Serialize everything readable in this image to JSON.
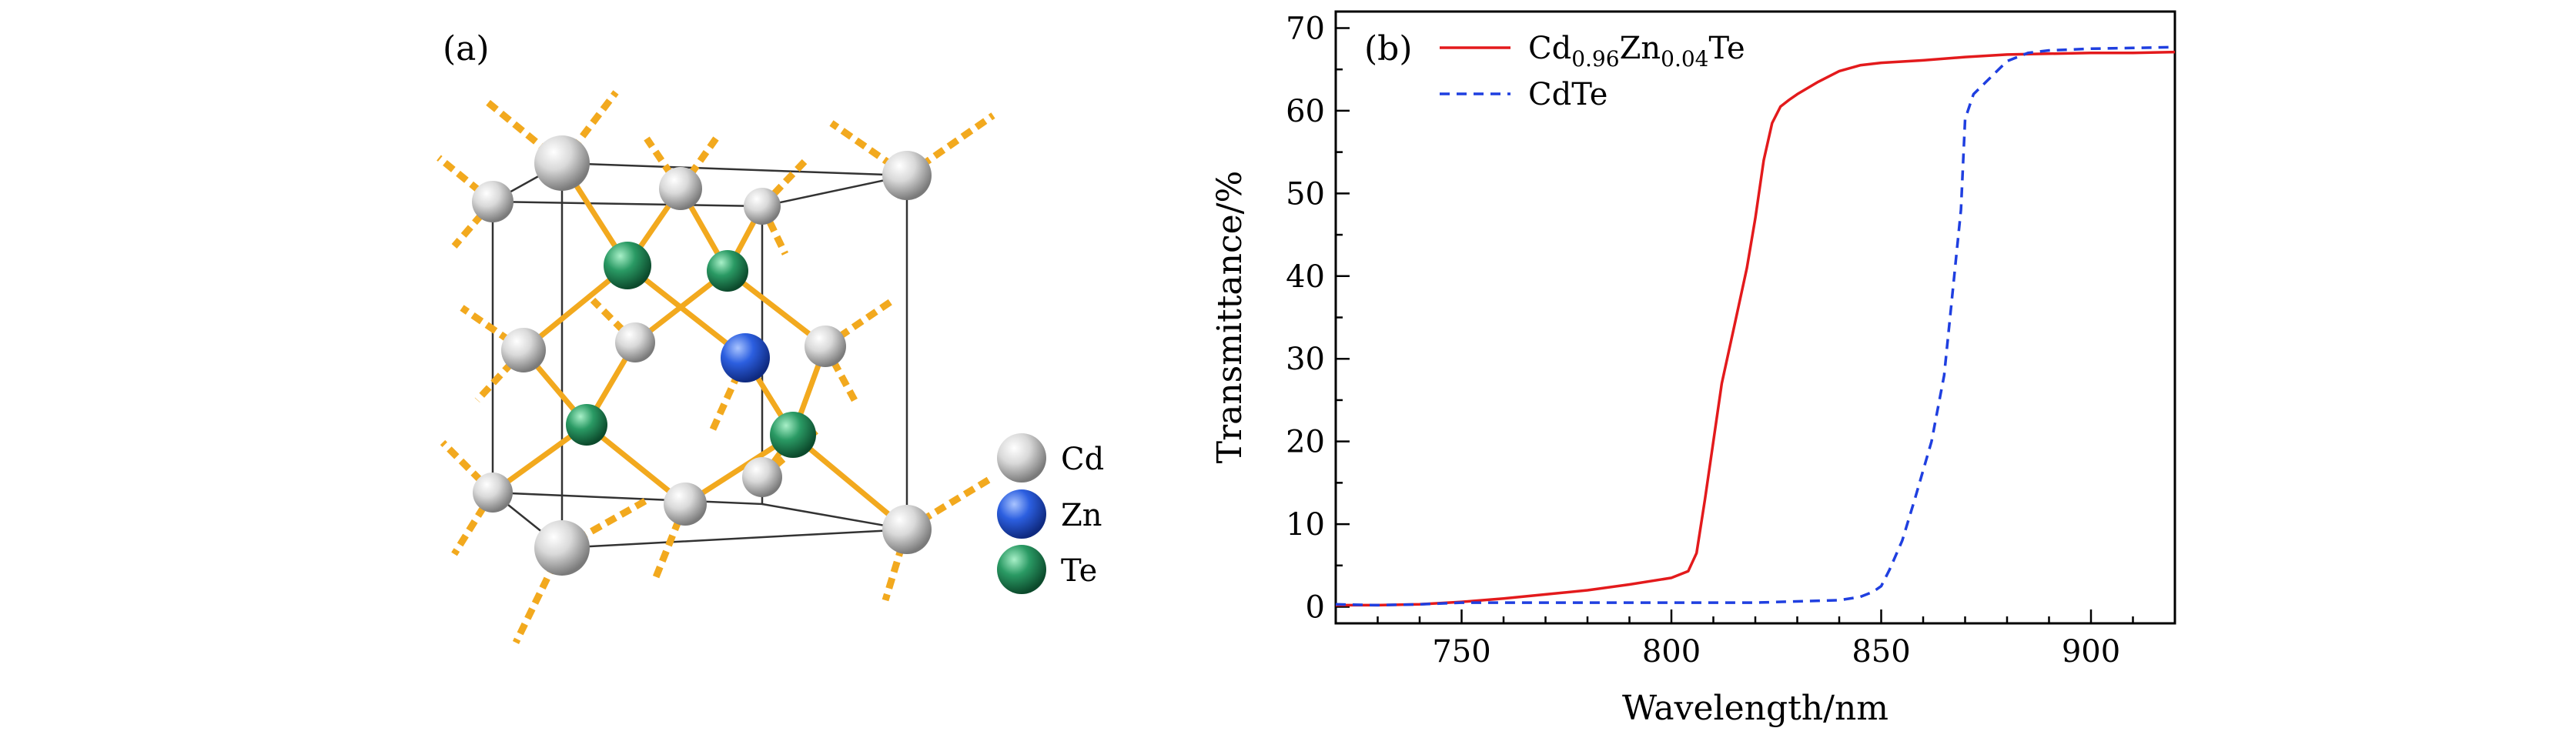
{
  "panel_a": {
    "label": "(a)",
    "legend": [
      {
        "name": "Cd",
        "color": "#d4d4d4"
      },
      {
        "name": "Zn",
        "color": "#2255d6"
      },
      {
        "name": "Te",
        "color": "#1f8f5f"
      }
    ],
    "bond_color": "#f2a91e"
  },
  "panel_b": {
    "label": "(b)",
    "legend": [
      {
        "base1": "Cd",
        "sub1": "0.96",
        "base2": "Zn",
        "sub2": "0.04",
        "base3": "Te"
      },
      {
        "text": "CdTe"
      }
    ]
  },
  "chart_data": {
    "type": "line",
    "xlabel": "Wavelength/nm",
    "ylabel": "Transmittance/%",
    "xlim": [
      720,
      920
    ],
    "ylim": [
      -2,
      72
    ],
    "xticks": [
      750,
      800,
      850,
      900
    ],
    "yticks": [
      0,
      10,
      20,
      30,
      40,
      50,
      60,
      70
    ],
    "legend_position": "top-left",
    "series": [
      {
        "name": "Cd0.96Zn0.04Te",
        "color": "#e31a1c",
        "dash": "solid",
        "x": [
          720,
          730,
          740,
          750,
          760,
          770,
          780,
          790,
          800,
          804,
          806,
          808,
          810,
          812,
          815,
          818,
          820,
          822,
          824,
          826,
          828,
          830,
          835,
          840,
          845,
          850,
          860,
          870,
          880,
          890,
          900,
          910,
          920
        ],
        "y": [
          0.2,
          0.2,
          0.3,
          0.6,
          1.0,
          1.5,
          2.0,
          2.7,
          3.5,
          4.3,
          6.5,
          13,
          20,
          27,
          34,
          41,
          47,
          54,
          58.5,
          60.5,
          61.3,
          62,
          63.5,
          64.8,
          65.5,
          65.8,
          66.1,
          66.5,
          66.8,
          66.9,
          67.0,
          67.0,
          67.1
        ]
      },
      {
        "name": "CdTe",
        "color": "#1f3fe0",
        "dash": "dashed",
        "x": [
          720,
          730,
          740,
          750,
          760,
          780,
          800,
          820,
          840,
          845,
          848,
          850,
          852,
          855,
          858,
          862,
          865,
          867,
          869,
          870,
          872,
          875,
          880,
          885,
          890,
          900,
          910,
          920
        ],
        "y": [
          0.3,
          0.2,
          0.3,
          0.5,
          0.5,
          0.5,
          0.5,
          0.5,
          0.8,
          1.2,
          1.8,
          2.5,
          4.5,
          8,
          13,
          20,
          28,
          38,
          48,
          59,
          62,
          63.5,
          66,
          67,
          67.3,
          67.5,
          67.6,
          67.7
        ]
      }
    ]
  }
}
